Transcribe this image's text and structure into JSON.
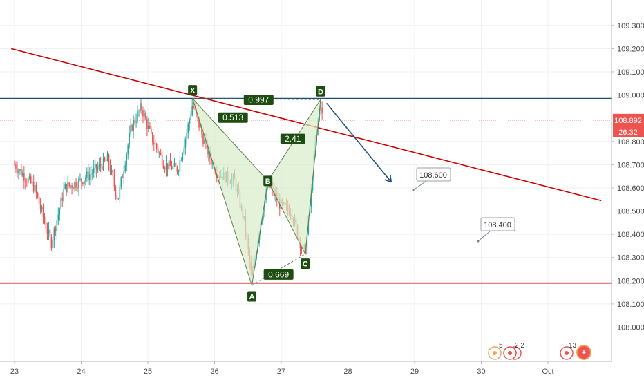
{
  "chart_data": {
    "type": "candlestick",
    "x_ticks": [
      "23",
      "24",
      "25",
      "26",
      "27",
      "28",
      "29",
      "30",
      "Oct"
    ],
    "y_ticks": [
      "109.300",
      "109.200",
      "109.100",
      "109.000",
      "108.800",
      "108.700",
      "108.600",
      "108.500",
      "108.400",
      "108.300",
      "108.200",
      "108.100",
      "108.000"
    ],
    "ylim": [
      107.93,
      109.35
    ],
    "xlim": [
      22.95,
      31.8
    ],
    "current_price": "108.892",
    "countdown": "26:32",
    "pattern": {
      "points": [
        {
          "label": "X",
          "x": 25.67,
          "y": 108.985
        },
        {
          "label": "A",
          "x": 26.56,
          "y": 108.18
        },
        {
          "label": "B",
          "x": 26.8,
          "y": 108.63
        },
        {
          "label": "C",
          "x": 27.36,
          "y": 108.315
        },
        {
          "label": "D",
          "x": 27.59,
          "y": 108.98
        }
      ],
      "ratios": [
        "0.513",
        "2.41",
        "0.669",
        "0.997"
      ]
    },
    "callouts": [
      "108.600",
      "108.400"
    ],
    "arrow": {
      "from": [
        27.68,
        108.965
      ],
      "to": [
        28.65,
        108.625
      ]
    },
    "lines": {
      "resistance": 108.985,
      "support": 108.19,
      "trendline": {
        "from": [
          22.95,
          109.2
        ],
        "to": [
          31.8,
          108.545
        ]
      }
    },
    "icon_badges": [
      "5",
      "2",
      "2",
      "13"
    ],
    "colors": {
      "up": "#26a69a",
      "down": "#ef5350",
      "pattern_fill": "#d7ecc9",
      "pattern_label": "#1e4d12",
      "resistance": "#1f4e79",
      "support": "#cc0000",
      "arrow": "#1f4e79",
      "price_badge": "#ef5350"
    }
  }
}
